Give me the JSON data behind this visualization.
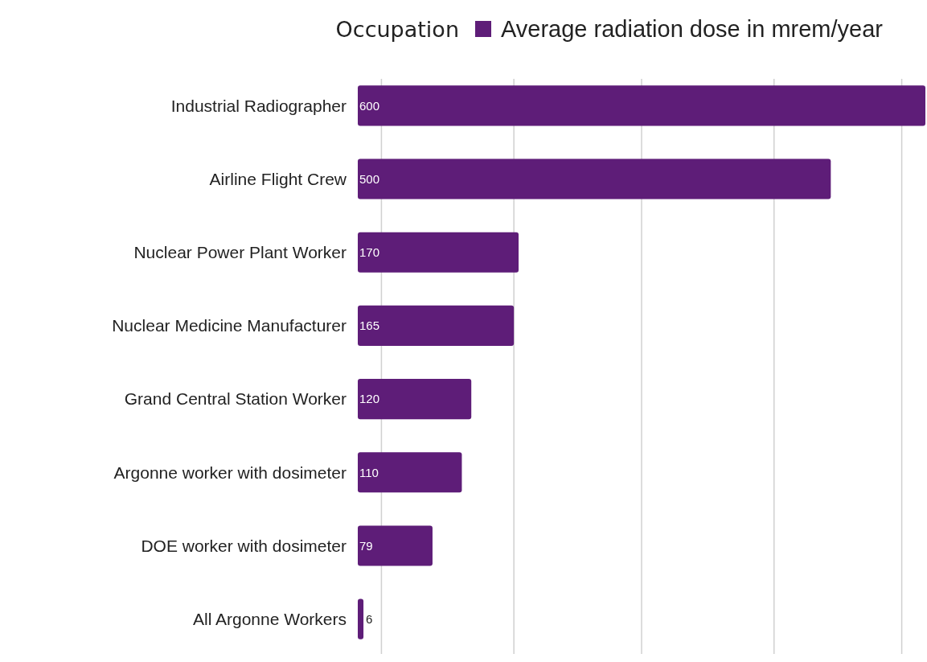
{
  "chart_data": {
    "type": "bar",
    "orientation": "horizontal",
    "legend_title": "Occupation",
    "legend": "top right",
    "categories": [
      "Industrial Radiographer",
      "Airline Flight Crew",
      "Nuclear Power Plant Worker",
      "Nuclear Medicine Manufacturer",
      "Grand Central Station Worker",
      "Argonne worker with dosimeter",
      "DOE worker with dosimeter",
      "All Argonne Workers"
    ],
    "series": [
      {
        "name": "Average radiation dose in mrem/year",
        "color": "#5e1d78",
        "values": [
          600,
          500,
          170,
          165,
          120,
          110,
          79,
          6
        ]
      }
    ],
    "data_labels": true,
    "xlim": [
      0,
      600
    ],
    "xticks": [
      {
        "value": 25,
        "label": null
      },
      {
        "value": 165,
        "label": null
      },
      {
        "value": 300,
        "label": null
      },
      {
        "value": 440,
        "label": null
      },
      {
        "value": 575,
        "label": null
      }
    ],
    "grid": "x"
  }
}
